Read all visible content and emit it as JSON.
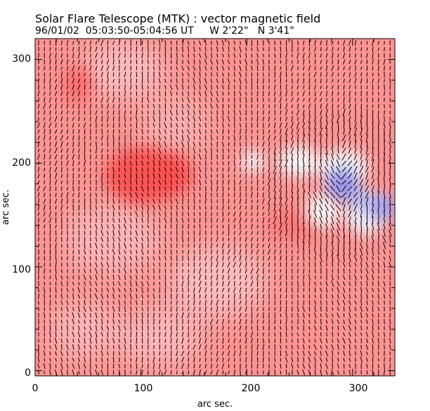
{
  "figure": {
    "title": "Solar Flare Telescope (MTK) : vector magnetic field",
    "subtitle": "96/01/02  05:03:50-05:04:56 UT     W 2'22\"   N 3'41\"",
    "xlabel": "arc sec.",
    "ylabel": "arc sec.",
    "xticks": [
      0,
      100,
      200,
      300
    ],
    "yticks": [
      0,
      100,
      200,
      300
    ],
    "xlim": [
      0,
      340
    ],
    "ylim": [
      -5,
      320
    ],
    "colors": {
      "background_field": "#ff8c8c",
      "strong_positive": "#ff4a4a",
      "neutral": "#f4f0f4",
      "negative": "#8a8cf0",
      "vectors": "#000000",
      "frame": "#000000"
    }
  }
}
